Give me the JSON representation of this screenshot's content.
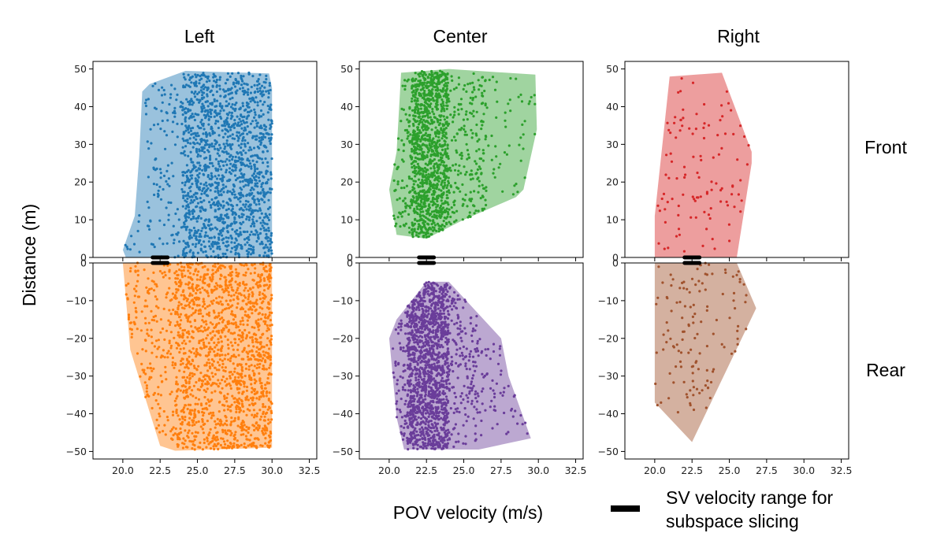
{
  "chart_data": {
    "type": "scatter",
    "column_titles": [
      "Left",
      "Center",
      "Right"
    ],
    "row_labels": [
      "Front",
      "Rear"
    ],
    "xlabel": "POV velocity (m/s)",
    "ylabel": "Distance (m)",
    "legend": {
      "label_line1": "SV velocity range for",
      "label_line2": "subspace slicing",
      "color": "#000000",
      "placement": "bottom-right"
    },
    "xlim": [
      18.0,
      33.0
    ],
    "xticks": [
      20.0,
      22.5,
      25.0,
      27.5,
      30.0,
      32.5
    ],
    "xtick_labels": [
      "20.0",
      "22.5",
      "25.0",
      "27.5",
      "30.0",
      "32.5"
    ],
    "front_ylim": [
      0,
      52
    ],
    "front_yticks": [
      0,
      10,
      20,
      30,
      40,
      50
    ],
    "front_ytick_labels": [
      "0",
      "10",
      "20",
      "30",
      "40",
      "50"
    ],
    "rear_ylim": [
      -52,
      0
    ],
    "rear_yticks": [
      0,
      -10,
      -20,
      -30,
      -40,
      -50
    ],
    "rear_ytick_labels": [
      "0",
      "−10",
      "−20",
      "−30",
      "−40",
      "−50"
    ],
    "panels": [
      {
        "name": "left-front",
        "row": 0,
        "col": 0,
        "color": "#1f77b4",
        "hull": [
          [
            20.0,
            2
          ],
          [
            20.8,
            11
          ],
          [
            21.1,
            27
          ],
          [
            21.3,
            44
          ],
          [
            21.8,
            46
          ],
          [
            24.2,
            49.5
          ],
          [
            29.8,
            48.8
          ],
          [
            30.0,
            45
          ],
          [
            30.0,
            0
          ],
          [
            20.2,
            0
          ]
        ],
        "sv_range": [
          22.0,
          23.0
        ],
        "clusters": [
          {
            "x": [
              24.0,
              30.0
            ],
            "y": [
              0,
              49
            ],
            "n": 1500
          },
          {
            "x": [
              21.5,
              24.0
            ],
            "y": [
              0,
              48
            ],
            "n": 120
          },
          {
            "x": [
              20.0,
              21.5
            ],
            "y": [
              0,
              12
            ],
            "n": 10
          }
        ]
      },
      {
        "name": "center-front",
        "row": 0,
        "col": 1,
        "color": "#2ca02c",
        "hull": [
          [
            20.0,
            18
          ],
          [
            20.5,
            28
          ],
          [
            20.8,
            49
          ],
          [
            24.0,
            50
          ],
          [
            29.8,
            48.5
          ],
          [
            29.9,
            34
          ],
          [
            29.0,
            18
          ],
          [
            28.5,
            16
          ],
          [
            25.0,
            10
          ],
          [
            22.5,
            5
          ],
          [
            20.5,
            6
          ]
        ],
        "sv_range": [
          22.0,
          23.0
        ],
        "clusters": [
          {
            "x": [
              21.5,
              24.0
            ],
            "y": [
              5,
              49.5
            ],
            "n": 900
          },
          {
            "x": [
              20.3,
              26.5
            ],
            "y": [
              6,
              49
            ],
            "n": 500
          },
          {
            "x": [
              26.0,
              29.8
            ],
            "y": [
              16,
              48
            ],
            "n": 60
          }
        ]
      },
      {
        "name": "right-front",
        "row": 0,
        "col": 2,
        "color": "#d62728",
        "hull": [
          [
            20.0,
            11
          ],
          [
            21.0,
            48
          ],
          [
            24.5,
            49
          ],
          [
            26.5,
            28
          ],
          [
            26.5,
            25
          ],
          [
            25.5,
            0
          ],
          [
            20.0,
            0
          ]
        ],
        "sv_range": [
          22.0,
          23.0
        ],
        "clusters": [
          {
            "x": [
              20.0,
              26.3
            ],
            "y": [
              0,
              48
            ],
            "n": 110
          }
        ]
      },
      {
        "name": "left-rear",
        "row": 1,
        "col": 0,
        "color": "#ff7f0e",
        "hull": [
          [
            20.0,
            0
          ],
          [
            20.5,
            -23
          ],
          [
            22.5,
            -48.5
          ],
          [
            23.5,
            -49.8
          ],
          [
            30.0,
            -49
          ],
          [
            30.0,
            0
          ]
        ],
        "sv_range": [
          22.0,
          23.0
        ],
        "clusters": [
          {
            "x": [
              23.5,
              30.0
            ],
            "y": [
              -49.5,
              0
            ],
            "n": 1500
          },
          {
            "x": [
              20.2,
              23.5
            ],
            "y": [
              -48,
              0
            ],
            "n": 200
          }
        ]
      },
      {
        "name": "center-rear",
        "row": 1,
        "col": 1,
        "color": "#6a3d9a",
        "hull": [
          [
            20.0,
            -20
          ],
          [
            20.5,
            -41
          ],
          [
            21.0,
            -49.5
          ],
          [
            26.0,
            -49.5
          ],
          [
            29.5,
            -46.5
          ],
          [
            28.0,
            -30
          ],
          [
            27.5,
            -20
          ],
          [
            24.0,
            -5
          ],
          [
            22.5,
            -5
          ],
          [
            20.5,
            -15
          ]
        ],
        "sv_range": [
          22.0,
          23.0
        ],
        "clusters": [
          {
            "x": [
              21.2,
              24.0
            ],
            "y": [
              -49.5,
              -5
            ],
            "n": 1100
          },
          {
            "x": [
              20.2,
              26.0
            ],
            "y": [
              -49,
              -6
            ],
            "n": 500
          },
          {
            "x": [
              25.5,
              29.5
            ],
            "y": [
              -46,
              -20
            ],
            "n": 70
          }
        ]
      },
      {
        "name": "right-rear",
        "row": 1,
        "col": 2,
        "color": "#a0522d",
        "hull": [
          [
            20.0,
            0
          ],
          [
            20.0,
            -37
          ],
          [
            22.5,
            -47.5
          ],
          [
            26.8,
            -12
          ],
          [
            25.5,
            0
          ]
        ],
        "sv_range": [
          22.0,
          23.0
        ],
        "clusters": [
          {
            "x": [
              20.0,
              26.5
            ],
            "y": [
              -40,
              0
            ],
            "n": 130
          }
        ]
      }
    ]
  }
}
